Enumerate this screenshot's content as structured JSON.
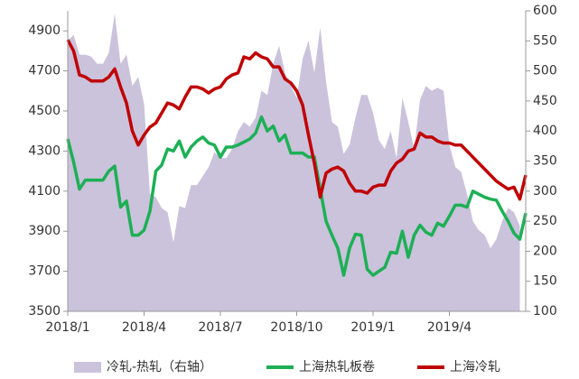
{
  "chart_data": {
    "type": "line",
    "categories": [
      "2018/1",
      null,
      null,
      null,
      null,
      null,
      null,
      null,
      null,
      null,
      null,
      null,
      null,
      "2018/4",
      null,
      null,
      null,
      null,
      null,
      null,
      null,
      null,
      null,
      null,
      null,
      null,
      "2018/7",
      null,
      null,
      null,
      null,
      null,
      null,
      null,
      null,
      null,
      null,
      null,
      null,
      "2018/10",
      null,
      null,
      null,
      null,
      null,
      null,
      null,
      null,
      null,
      null,
      null,
      null,
      "2019/1",
      null,
      null,
      null,
      null,
      null,
      null,
      null,
      null,
      null,
      null,
      null,
      null,
      "2019/4",
      null,
      null,
      null,
      null,
      null,
      null,
      null,
      null,
      null,
      null,
      null,
      null,
      null
    ],
    "series": [
      {
        "name": "冷轧-热轧（右轴）",
        "type": "area",
        "axis": "y2",
        "color": "#cbc2dc",
        "values": [
          550,
          560,
          527,
          527,
          524,
          512,
          512,
          530,
          595,
          512,
          527,
          475,
          490,
          445,
          295,
          290,
          272,
          265,
          215,
          275,
          272,
          310,
          310,
          325,
          340,
          365,
          355,
          355,
          370,
          400,
          415,
          407,
          422,
          467,
          460,
          512,
          542,
          497,
          475,
          455,
          520,
          550,
          497,
          572,
          482,
          415,
          407,
          362,
          377,
          422,
          460,
          460,
          430,
          385,
          370,
          400,
          355,
          455,
          415,
          370,
          452,
          475,
          467,
          472,
          467,
          377,
          340,
          332,
          295,
          250,
          235,
          227,
          205,
          220,
          250,
          272,
          265,
          242,
          null
        ]
      },
      {
        "name": "上海热轧板卷",
        "type": "line",
        "color": "#1db055",
        "values": [
          4360,
          4245,
          4110,
          4155,
          4155,
          4155,
          4155,
          4200,
          4225,
          4020,
          4050,
          3880,
          3880,
          3905,
          4000,
          4200,
          4230,
          4310,
          4300,
          4350,
          4270,
          4320,
          4350,
          4370,
          4340,
          4330,
          4270,
          4320,
          4320,
          4330,
          4345,
          4360,
          4390,
          4470,
          4400,
          4425,
          4350,
          4380,
          4290,
          4290,
          4290,
          4270,
          4270,
          4110,
          3950,
          3880,
          3815,
          3680,
          3815,
          3885,
          3880,
          3710,
          3680,
          3700,
          3720,
          3795,
          3790,
          3900,
          3770,
          3880,
          3930,
          3895,
          3880,
          3940,
          3925,
          3975,
          4030,
          4030,
          4020,
          4100,
          4085,
          4070,
          4060,
          4055,
          4000,
          3950,
          3890,
          3860,
          3990
        ]
      },
      {
        "name": "上海冷轧",
        "type": "line",
        "color": "#c00000",
        "values": [
          4855,
          4800,
          4680,
          4670,
          4650,
          4650,
          4650,
          4670,
          4710,
          4620,
          4540,
          4400,
          4330,
          4380,
          4420,
          4440,
          4490,
          4540,
          4530,
          4510,
          4570,
          4620,
          4620,
          4610,
          4590,
          4610,
          4620,
          4660,
          4680,
          4690,
          4770,
          4760,
          4790,
          4770,
          4760,
          4720,
          4720,
          4660,
          4640,
          4600,
          4530,
          4380,
          4240,
          4070,
          4190,
          4210,
          4220,
          4200,
          4140,
          4100,
          4100,
          4090,
          4120,
          4130,
          4130,
          4200,
          4240,
          4260,
          4300,
          4310,
          4390,
          4370,
          4370,
          4350,
          4340,
          4340,
          4330,
          4330,
          4300,
          4270,
          4240,
          4210,
          4180,
          4150,
          4130,
          4110,
          4120,
          4060,
          4180
        ]
      }
    ],
    "ylim": [
      3500,
      5000
    ],
    "yticks": [
      3500,
      3700,
      3900,
      4100,
      4300,
      4500,
      4700,
      4900
    ],
    "y2lim": [
      100,
      600
    ],
    "y2ticks": [
      100,
      150,
      200,
      250,
      300,
      350,
      400,
      450,
      500,
      550,
      600
    ],
    "grid": false,
    "legend": "bottom"
  }
}
